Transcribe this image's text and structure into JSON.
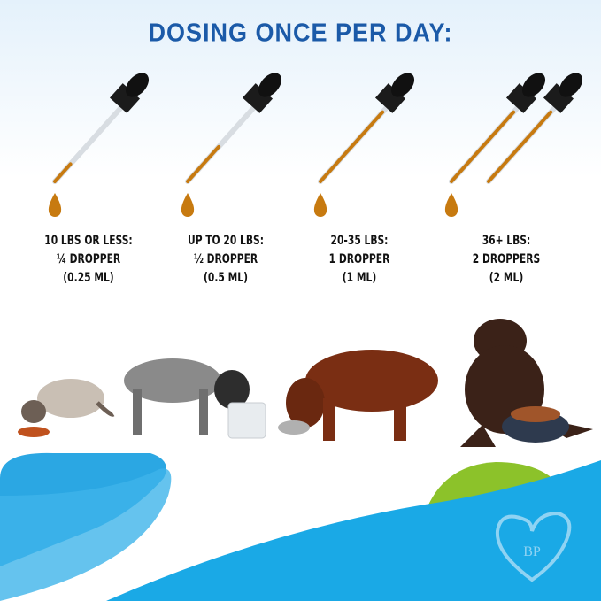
{
  "title": "DOSING ONCE PER DAY:",
  "doses": [
    {
      "weight": "10 LBS OR LESS:",
      "amount": "¼ DROPPER",
      "volume": "(0.25 ML)",
      "fill": 0.25
    },
    {
      "weight": "UP TO 20 LBS:",
      "amount": "½ DROPPER",
      "volume": "(0.5 ML)",
      "fill": 0.5
    },
    {
      "weight": "20-35 LBS:",
      "amount": "1 DROPPER",
      "volume": "(1 ML)",
      "fill": 1
    },
    {
      "weight": "36+ LBS:",
      "amount": "2 DROPPERS",
      "volume": "(2 ML)",
      "fill": 1
    }
  ],
  "logo": "BP",
  "colors": {
    "title": "#1b5aa8",
    "oil": "#c77a10",
    "blue": "#1aa9e6",
    "green": "#8cc22a"
  }
}
